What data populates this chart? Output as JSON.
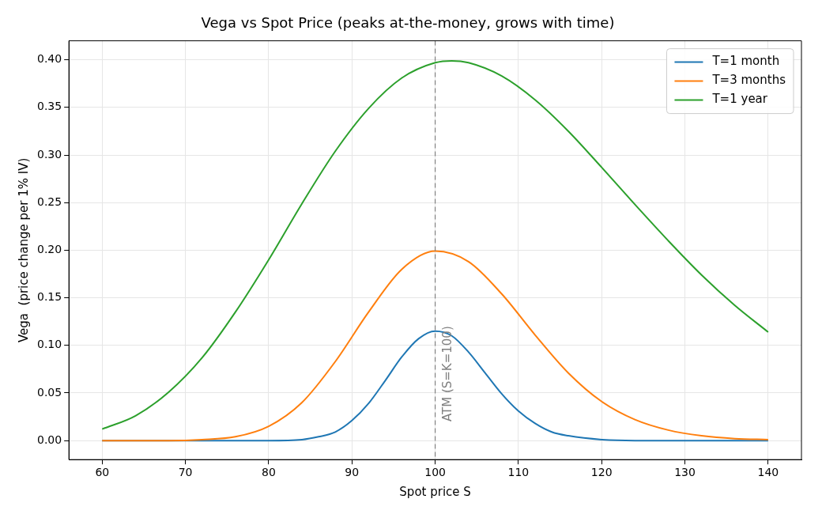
{
  "chart_data": {
    "type": "line",
    "title": "Vega vs Spot Price (peaks at-the-money, grows with time)",
    "xlabel": "Spot price S",
    "ylabel": "Vega  (price change per 1% IV)",
    "xlim": [
      56,
      144
    ],
    "ylim": [
      -0.02,
      0.42
    ],
    "xticks": [
      60,
      70,
      80,
      90,
      100,
      110,
      120,
      130,
      140
    ],
    "yticks": [
      {
        "value": 0,
        "label": "0.00"
      },
      {
        "value": 0.05,
        "label": "0.05"
      },
      {
        "value": 0.1,
        "label": "0.10"
      },
      {
        "value": 0.15,
        "label": "0.15"
      },
      {
        "value": 0.2,
        "label": "0.20"
      },
      {
        "value": 0.25,
        "label": "0.25"
      },
      {
        "value": 0.3,
        "label": "0.30"
      },
      {
        "value": 0.35,
        "label": "0.35"
      },
      {
        "value": 0.4,
        "label": "0.40"
      }
    ],
    "grid": true,
    "legend": "top right",
    "marker": "none",
    "line_style": "solid",
    "ref_lines": [
      {
        "axis": "x",
        "value": 100,
        "label": "ATM (S=K=100)",
        "color": "#808080",
        "line_style": "dashed"
      }
    ],
    "series": [
      {
        "name": "T=1 month",
        "color": "#1f77b4",
        "x": [
          60,
          70,
          80,
          84,
          86,
          88,
          90,
          92,
          94,
          96,
          98,
          100,
          102,
          104,
          106,
          108,
          110,
          112,
          114,
          116,
          120,
          124,
          130,
          140
        ],
        "values": [
          0,
          0,
          0,
          0.001,
          0.004,
          0.009,
          0.021,
          0.039,
          0.063,
          0.088,
          0.107,
          0.115,
          0.11,
          0.093,
          0.071,
          0.049,
          0.031,
          0.018,
          0.009,
          0.005,
          0.001,
          0,
          0,
          0
        ]
      },
      {
        "name": "T=3 months",
        "color": "#ff7f0e",
        "x": [
          60,
          64,
          68,
          72,
          76,
          80,
          84,
          88,
          92,
          96,
          100,
          104,
          108,
          112,
          116,
          120,
          124,
          128,
          132,
          136,
          140
        ],
        "values": [
          0,
          0,
          0,
          0.001,
          0.004,
          0.015,
          0.04,
          0.083,
          0.135,
          0.18,
          0.199,
          0.188,
          0.154,
          0.111,
          0.071,
          0.041,
          0.022,
          0.011,
          0.005,
          0.002,
          0.001
        ]
      },
      {
        "name": "T=1 year",
        "color": "#2ca02c",
        "x": [
          60,
          64,
          68,
          72,
          76,
          80,
          84,
          88,
          92,
          96,
          100,
          102,
          104,
          108,
          112,
          116,
          120,
          124,
          128,
          132,
          136,
          140
        ],
        "values": [
          0.012,
          0.026,
          0.051,
          0.087,
          0.135,
          0.19,
          0.249,
          0.304,
          0.349,
          0.381,
          0.397,
          0.399,
          0.397,
          0.383,
          0.358,
          0.325,
          0.287,
          0.248,
          0.21,
          0.174,
          0.142,
          0.114
        ]
      }
    ]
  }
}
